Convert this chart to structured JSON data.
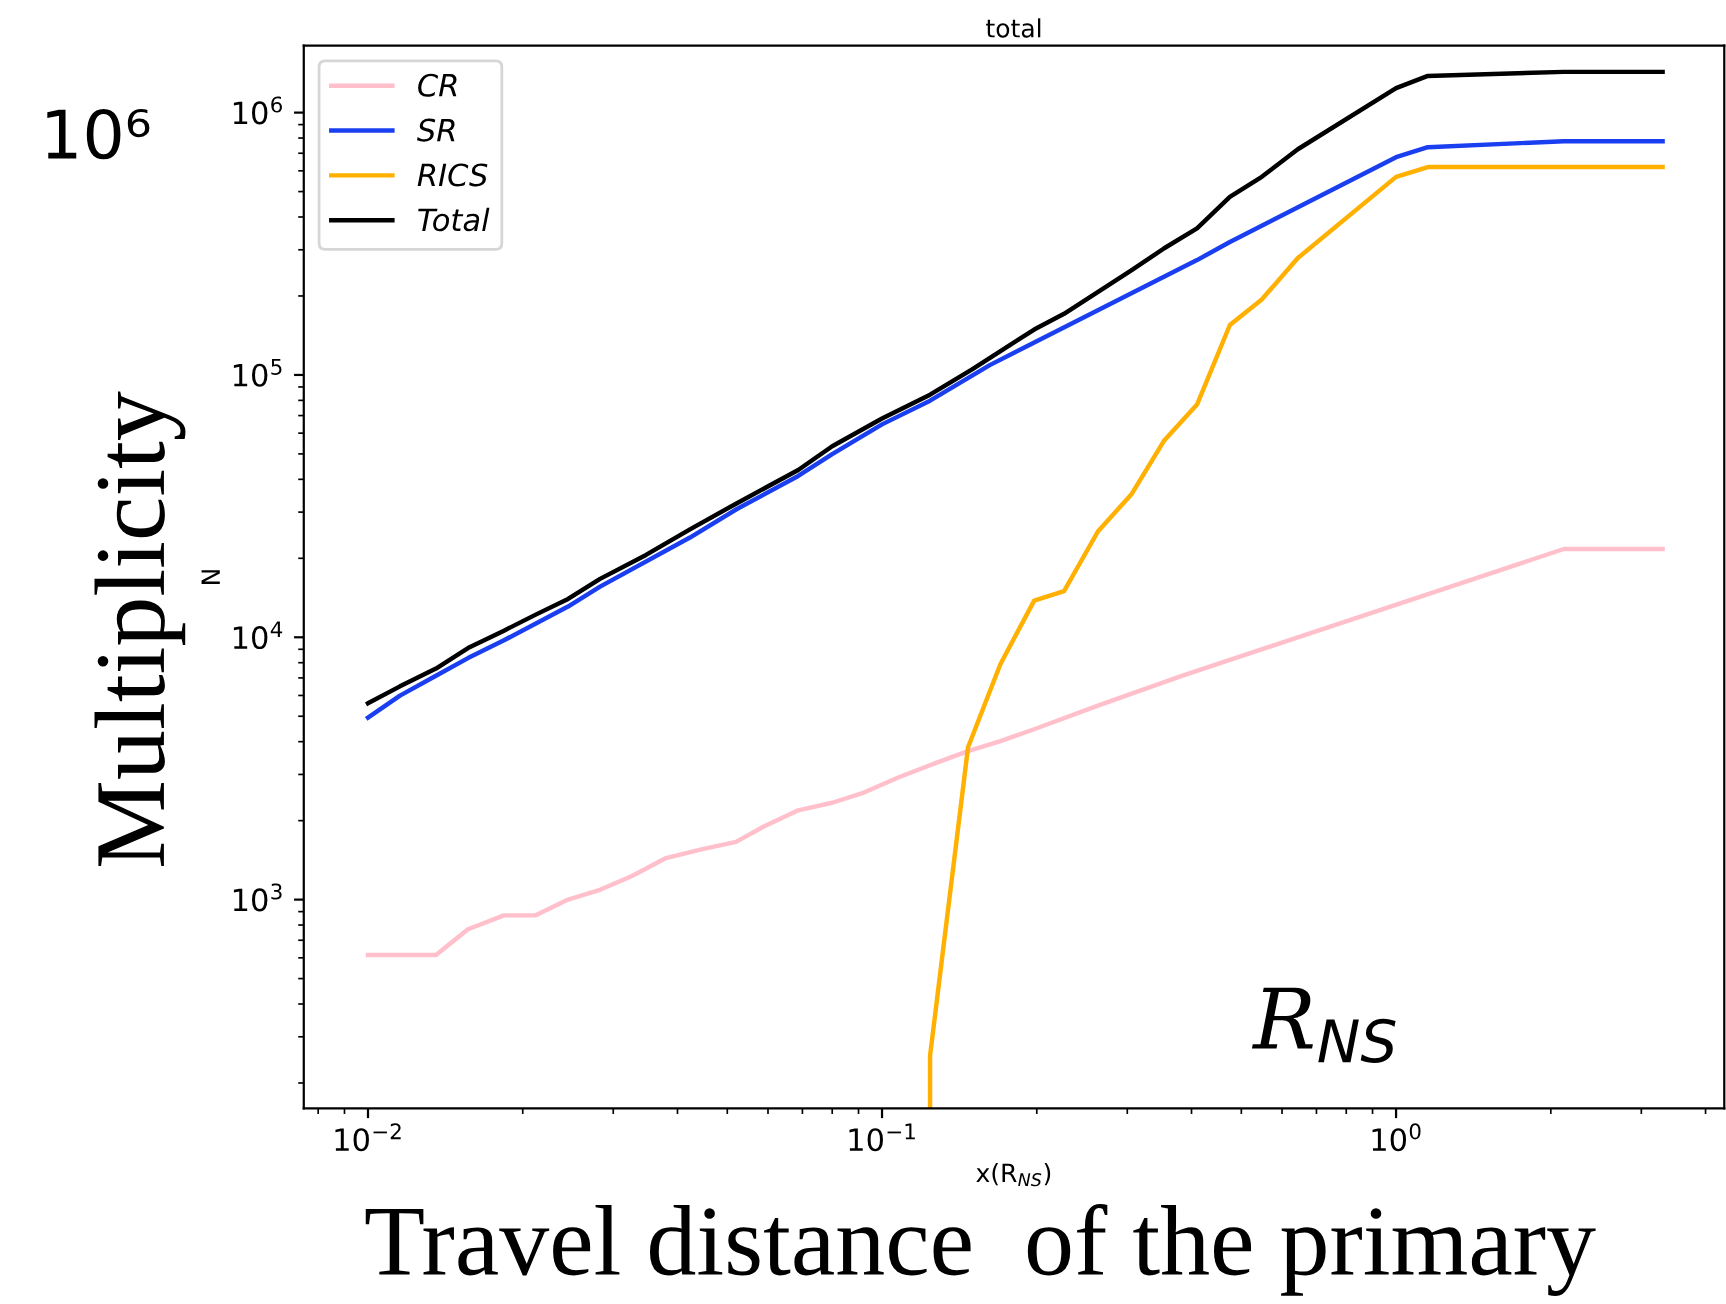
{
  "chart_data": {
    "type": "line",
    "title": "total",
    "xlabel": "x(R$_{NS}$)",
    "ylabel": "N",
    "log": "xy",
    "grid": false,
    "legend": "top left",
    "line_style": "solid",
    "marker": "none",
    "xlim": [
      0.0075,
      4.35
    ],
    "ylim": [
      160,
      1800000
    ],
    "xticks": [
      {
        "value": 0.01,
        "label": "10$^{−2}$"
      },
      {
        "value": 0.1,
        "label": "10$^{−1}$"
      },
      {
        "value": 1,
        "label": "10$^{0}$"
      }
    ],
    "yticks": [
      {
        "value": 1000,
        "label": "10$^{3}$"
      },
      {
        "value": 10000,
        "label": "10$^{4}$"
      },
      {
        "value": 100000,
        "label": "10$^{5}$"
      },
      {
        "value": 1000000,
        "label": "10$^{6}$"
      }
    ],
    "annotations": [
      "10⁶",
      "Multiplicity",
      "Travel distance  of the primary",
      "R$_{NS}$"
    ],
    "series": [
      {
        "name": "CR",
        "color": "#ffc0cb",
        "x": [
          0.01,
          0.01356,
          0.01565,
          0.01839,
          0.0212,
          0.0245,
          0.02828,
          0.03263,
          0.038,
          0.0443,
          0.052,
          0.0589,
          0.0687,
          0.08,
          0.0922,
          0.1084,
          0.1274,
          0.147,
          0.17,
          0.1977,
          0.263,
          0.383,
          2.12,
          3.3
        ],
        "values": [
          615,
          615,
          771,
          871,
          871,
          1000,
          1090,
          1230,
          1440,
          1550,
          1660,
          1900,
          2190,
          2340,
          2560,
          2940,
          3320,
          3680,
          4020,
          4460,
          5490,
          7130,
          21700,
          21700
        ]
      },
      {
        "name": "SR",
        "color": "#1a3ff0",
        "x": [
          0.01,
          0.01154,
          0.01356,
          0.01565,
          0.01839,
          0.0245,
          0.02828,
          0.0423,
          0.052,
          0.0687,
          0.08,
          0.1,
          0.124,
          0.162,
          0.41,
          0.475,
          1.0,
          1.153,
          2.12,
          3.3
        ],
        "values": [
          4940,
          5990,
          7130,
          8330,
          9740,
          13100,
          15600,
          24000,
          30700,
          41200,
          49900,
          64800,
          79800,
          109000,
          274000,
          321000,
          676000,
          738000,
          778000,
          778000
        ]
      },
      {
        "name": "RICS",
        "color": "#ffb000",
        "x": [
          0.124,
          0.124,
          0.147,
          0.17,
          0.1977,
          0.226,
          0.263,
          0.306,
          0.354,
          0.41,
          0.475,
          0.548,
          0.644,
          1.0,
          1.153,
          3.3
        ],
        "values": [
          160,
          254,
          3810,
          7910,
          13800,
          15000,
          25300,
          35200,
          56300,
          77100,
          155000,
          194000,
          279000,
          569000,
          620000,
          620000
        ]
      },
      {
        "name": "Total",
        "color": "#000000",
        "x": [
          0.01,
          0.01154,
          0.01356,
          0.01565,
          0.01839,
          0.0212,
          0.0245,
          0.02828,
          0.03474,
          0.0423,
          0.052,
          0.0687,
          0.08,
          0.1,
          0.124,
          0.1497,
          0.1977,
          0.226,
          0.306,
          0.354,
          0.41,
          0.475,
          0.548,
          0.644,
          1.0,
          1.153,
          2.12,
          3.3
        ],
        "values": [
          5600,
          6500,
          7600,
          9100,
          10600,
          12200,
          14000,
          16700,
          20600,
          25800,
          32300,
          43400,
          53500,
          68200,
          84100,
          105000,
          149000,
          171000,
          251000,
          304000,
          362000,
          477000,
          569000,
          725000,
          1240000,
          1380000,
          1430000,
          1430000
        ]
      }
    ]
  }
}
